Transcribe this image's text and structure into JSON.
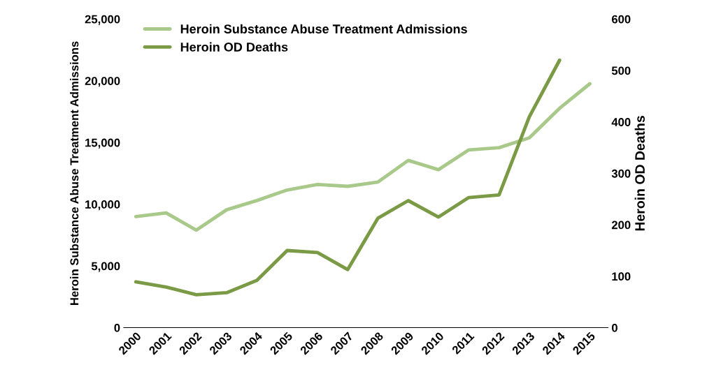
{
  "chart_data": {
    "type": "line",
    "categories": [
      "2000",
      "2001",
      "2002",
      "2003",
      "2004",
      "2005",
      "2006",
      "2007",
      "2008",
      "2009",
      "2010",
      "2011",
      "2012",
      "2013",
      "2014",
      "2015"
    ],
    "series": [
      {
        "name": "Heroin Substance Abuse Treatment Admissions",
        "color": "#a9c98a",
        "values": [
          9000,
          9300,
          7900,
          9550,
          10300,
          11150,
          11600,
          11450,
          11800,
          13550,
          12800,
          14400,
          14580,
          15380,
          17770,
          19760
        ]
      },
      {
        "name": "Heroin OD Deaths",
        "color": "#7a9a45",
        "axis": "y2",
        "values": [
          89,
          79,
          64,
          68,
          92,
          150,
          146,
          113,
          213,
          247,
          215,
          253,
          258,
          410,
          520,
          null
        ]
      }
    ],
    "ylabel": "Heroin Substance Abuse Treatment Admissions",
    "y2label": "Heroin OD Deaths",
    "ylim": [
      0,
      25000
    ],
    "yticks": [
      {
        "value": 0,
        "label": "0"
      },
      {
        "value": 5000,
        "label": "5,000"
      },
      {
        "value": 10000,
        "label": "10,000"
      },
      {
        "value": 15000,
        "label": "15,000"
      },
      {
        "value": 20000,
        "label": "20,000"
      },
      {
        "value": 25000,
        "label": "25,000"
      }
    ],
    "y2lim": [
      0,
      600
    ],
    "y2ticks": [
      0,
      100,
      200,
      300,
      400,
      500,
      600
    ],
    "grid": false,
    "legend": "top left",
    "line_style": "solid"
  }
}
